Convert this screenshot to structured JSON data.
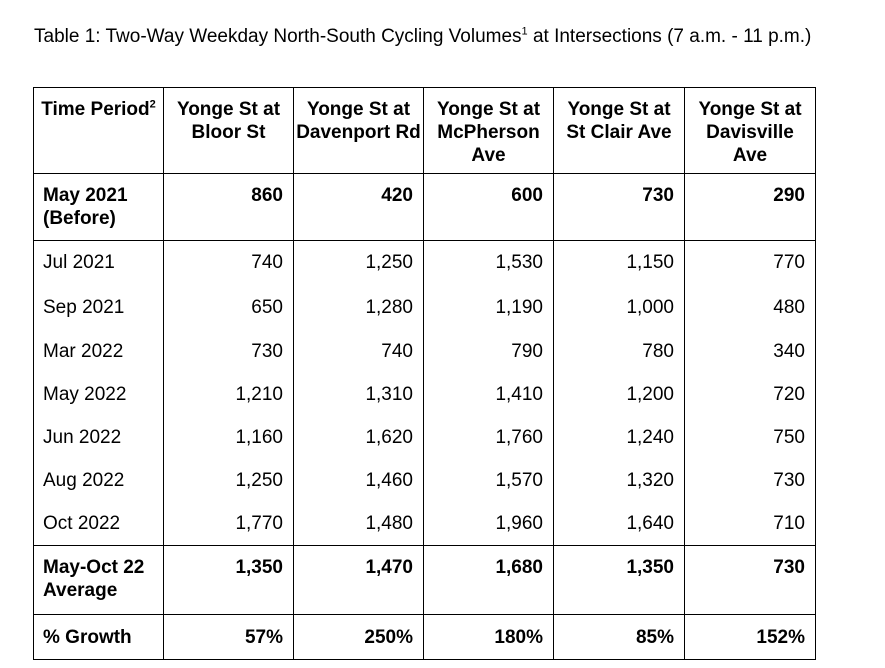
{
  "caption": {
    "text": "Table 1: Two-Way Weekday North-South Cycling Volumes",
    "footnote": "1",
    "text_after": " at Intersections (7 a.m. - 11 p.m.)"
  },
  "table": {
    "header_period": "Time Period",
    "header_period_footnote": "2",
    "columns": [
      "Yonge St at Bloor St",
      "Yonge St at Davenport Rd",
      "Yonge St at McPherson Ave",
      "Yonge St at St Clair Ave",
      "Yonge St at Davisville Ave"
    ],
    "rows": [
      {
        "period": "May 2021 (Before)",
        "values": [
          "860",
          "420",
          "600",
          "730",
          "290"
        ]
      },
      {
        "period": "Jul 2021",
        "values": [
          "740",
          "1,250",
          "1,530",
          "1,150",
          "770"
        ]
      },
      {
        "period": "Sep 2021",
        "values": [
          "650",
          "1,280",
          "1,190",
          "1,000",
          "480"
        ]
      },
      {
        "period": "Mar 2022",
        "values": [
          "730",
          "740",
          "790",
          "780",
          "340"
        ]
      },
      {
        "period": "May 2022",
        "values": [
          "1,210",
          "1,310",
          "1,410",
          "1,200",
          "720"
        ]
      },
      {
        "period": "Jun 2022",
        "values": [
          "1,160",
          "1,620",
          "1,760",
          "1,240",
          "750"
        ]
      },
      {
        "period": "Aug 2022",
        "values": [
          "1,250",
          "1,460",
          "1,570",
          "1,320",
          "730"
        ]
      },
      {
        "period": "Oct 2022",
        "values": [
          "1,770",
          "1,480",
          "1,960",
          "1,640",
          "710"
        ]
      },
      {
        "period": "May-Oct 22 Average",
        "values": [
          "1,350",
          "1,470",
          "1,680",
          "1,350",
          "730"
        ]
      },
      {
        "period": "% Growth",
        "values": [
          "57%",
          "250%",
          "180%",
          "85%",
          "152%"
        ]
      }
    ]
  }
}
